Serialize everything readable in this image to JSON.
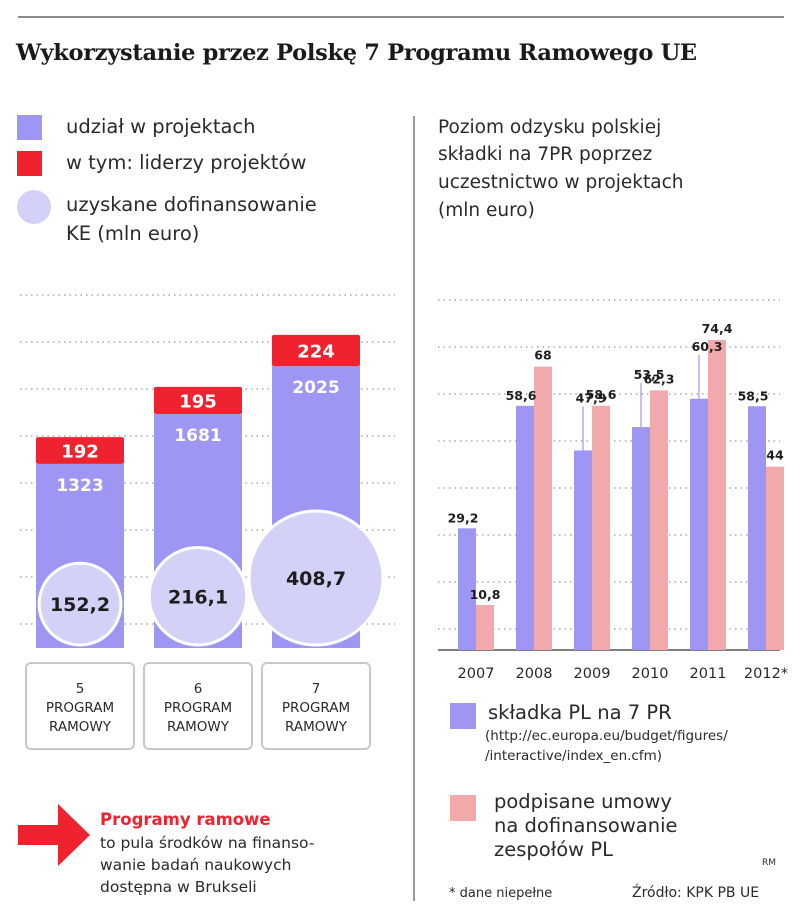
{
  "title": "Wykorzystanie przez Polskę 7 Programu Ramowego UE",
  "colors": {
    "participation": "#9d97f3",
    "leaders": "#ef2330",
    "funding": "#d4d1f8",
    "contribution": "#9d97f3",
    "contracts": "#f1a9ac",
    "accent_text": "#ef2330"
  },
  "left_legend": {
    "participation": "udział w projektach",
    "leaders": "w tym: liderzy projektów",
    "funding_line1": "uzyskane dofinansowanie",
    "funding_line2": "KE (mln euro)"
  },
  "right_heading": {
    "line1": "Poziom odzysku polskiej",
    "line2": "składki na 7PR poprzez",
    "line3": "uczestnictwo w projektach",
    "line4": "(mln euro)"
  },
  "chart_data": [
    {
      "type": "bar",
      "title": "Wykorzystanie przez Polskę 7 Programu Ramowego UE",
      "categories": [
        "5 PROGRAM RAMOWY",
        "6 PROGRAM RAMOWY",
        "7 PROGRAM RAMOWY"
      ],
      "category_labels": [
        {
          "num": "5",
          "l1": "PROGRAM",
          "l2": "RAMOWY"
        },
        {
          "num": "6",
          "l1": "PROGRAM",
          "l2": "RAMOWY"
        },
        {
          "num": "7",
          "l1": "PROGRAM",
          "l2": "RAMOWY"
        }
      ],
      "series": [
        {
          "name": "udział w projektach",
          "values": [
            1323,
            1681,
            2025
          ],
          "labels": [
            "1323",
            "1681",
            "2025"
          ]
        },
        {
          "name": "w tym: liderzy projektów",
          "values": [
            192,
            195,
            224
          ],
          "labels": [
            "192",
            "195",
            "224"
          ]
        },
        {
          "name": "uzyskane dofinansowanie KE (mln euro)",
          "values": [
            152.2,
            216.1,
            408.7
          ],
          "labels": [
            "152,2",
            "216,1",
            "408,7"
          ]
        }
      ],
      "ylim": [
        0,
        2550
      ],
      "grid": true
    },
    {
      "type": "bar",
      "title": "Poziom odzysku polskiej składki na 7PR poprzez uczestnictwo w projektach (mln euro)",
      "categories": [
        "2007",
        "2008",
        "2009",
        "2010",
        "2011",
        "2012*"
      ],
      "series": [
        {
          "name": "składka PL na 7 PR",
          "values": [
            29.2,
            58.6,
            47.9,
            53.5,
            60.3,
            58.5
          ],
          "labels": [
            "29,2",
            "58,6",
            "47,9",
            "53,5",
            "60,3",
            "58,5"
          ]
        },
        {
          "name": "podpisane umowy na dofinansowanie zespołów PL",
          "values": [
            10.8,
            68,
            58.6,
            62.3,
            74.4,
            44
          ],
          "labels": [
            "10,8",
            "68",
            "58,6",
            "62,3",
            "74,4",
            "44"
          ]
        }
      ],
      "ylim": [
        0,
        84
      ],
      "grid": true
    }
  ],
  "right_legend": {
    "contribution": "składka PL na 7 PR",
    "contribution_url1": "(http://ec.europa.eu/budget/figures/",
    "contribution_url2": "/interactive/index_en.cfm)",
    "contracts_line1": "podpisane umowy",
    "contracts_line2": "na dofinansowanie",
    "contracts_line3": "zespołów  PL"
  },
  "note": {
    "heading": "Programy ramowe",
    "line1": "to pula środków na finanso-",
    "line2": "wanie badań naukowych",
    "line3": "dostępna w Brukseli"
  },
  "footer": {
    "footnote": "* dane niepełne",
    "source": "Źródło: KPK PB UE",
    "author": "RM"
  }
}
